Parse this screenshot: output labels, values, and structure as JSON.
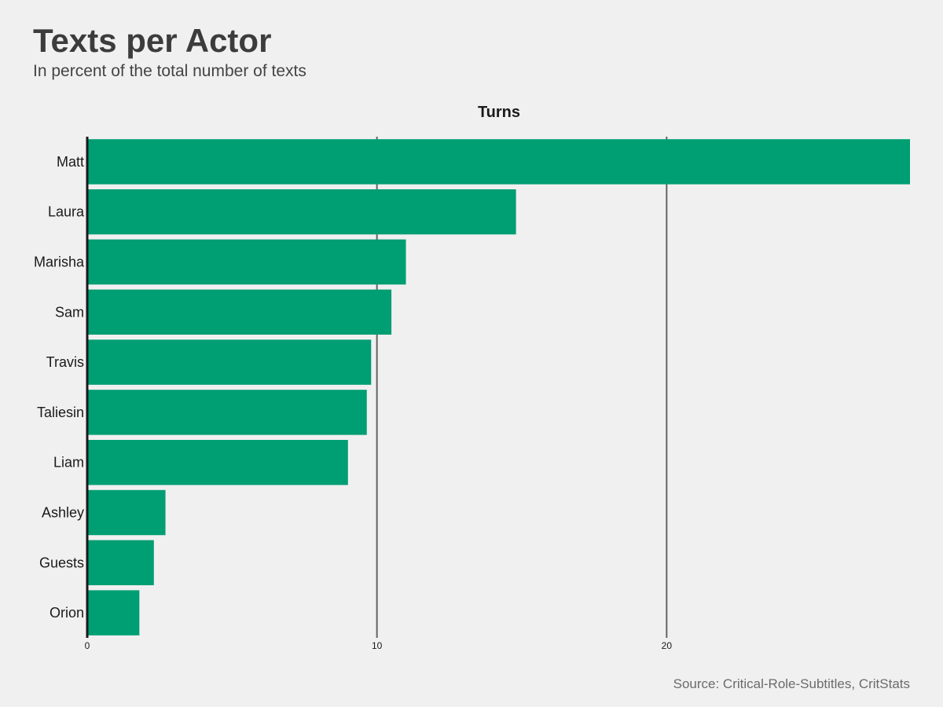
{
  "title": "Texts per Actor",
  "subtitle": "In percent of the total number of texts",
  "caption": "Source: Critical-Role-Subtitles, CritStats",
  "colors": {
    "bar": "#009e73",
    "background": "#f0f0f0",
    "grid": "#646464",
    "axis": "#1a1a1a"
  },
  "chart_data": {
    "type": "bar",
    "orientation": "horizontal",
    "facet_label": "Turns",
    "categories": [
      "Matt",
      "Laura",
      "Marisha",
      "Sam",
      "Travis",
      "Taliesin",
      "Liam",
      "Ashley",
      "Guests",
      "Orion"
    ],
    "values": [
      28.4,
      14.8,
      11.0,
      10.5,
      9.8,
      9.65,
      9.0,
      2.7,
      2.3,
      1.8
    ],
    "x_ticks": [
      0,
      10,
      20
    ],
    "xlim": [
      0,
      28.4
    ],
    "grid": "vertical major lines",
    "legend": "none"
  }
}
